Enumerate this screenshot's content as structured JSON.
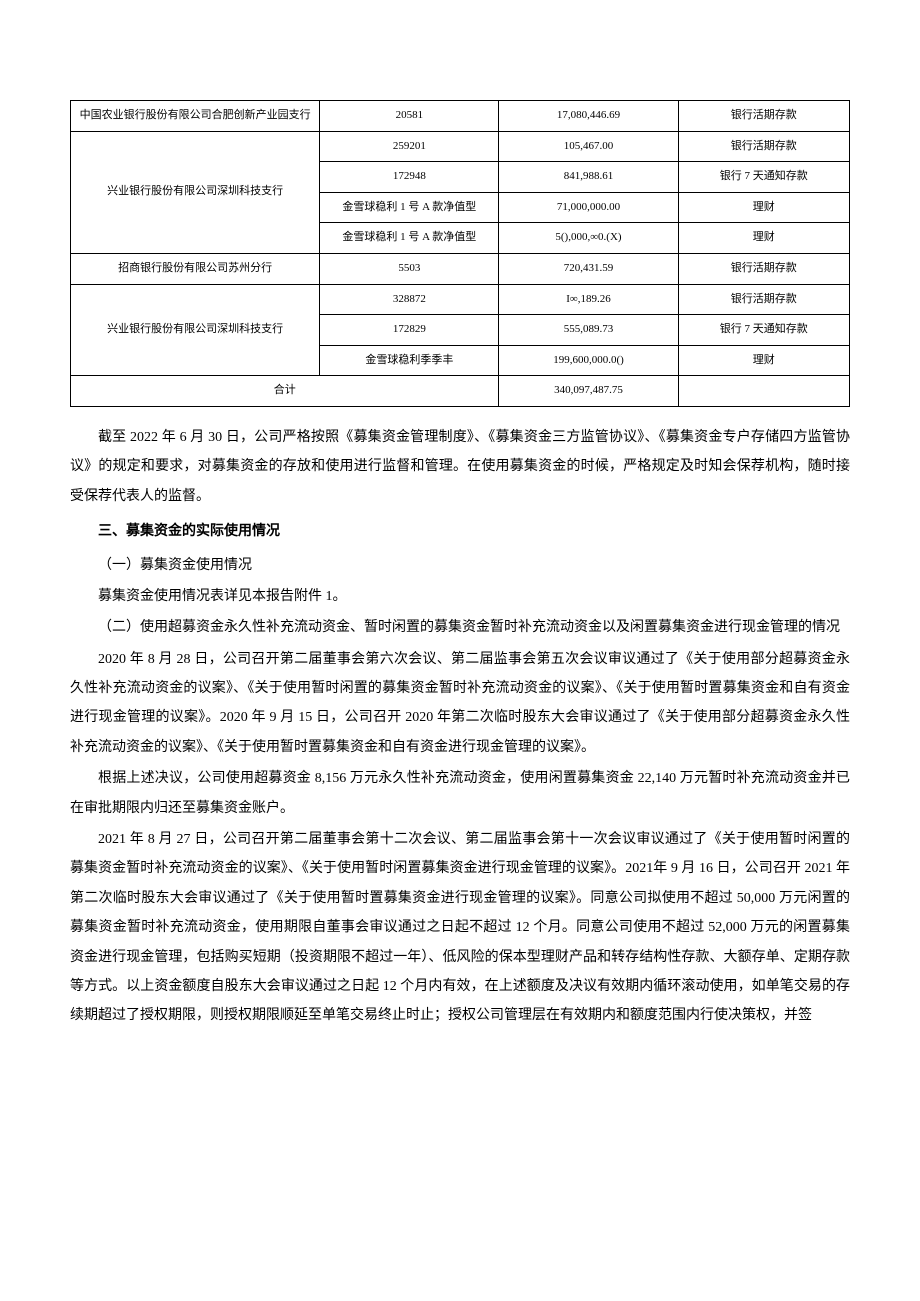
{
  "table": {
    "columns": {
      "bank_width": "32%",
      "account_width": "23%",
      "amount_width": "23%",
      "type_width": "22%"
    },
    "border_color": "#000000",
    "font_size": 11,
    "rows": [
      {
        "bank": "中国农业银行股份有限公司合肥创新产业园支行",
        "bank_rowspan": 1,
        "account": "20581",
        "amount": "17,080,446.69",
        "type": "银行活期存款"
      },
      {
        "bank": "兴业银行股份有限公司深圳科技支行",
        "bank_rowspan": 4,
        "account": "259201",
        "amount": "105,467.00",
        "type": "银行活期存款"
      },
      {
        "account": "172948",
        "amount": "841,988.61",
        "type": "银行 7 天通知存款"
      },
      {
        "account": "金雪球稳利 1 号 A 款净值型",
        "amount": "71,000,000.00",
        "type": "理财"
      },
      {
        "account": "金雪球稳利 1 号 A 款净值型",
        "amount": "5(),000,∞0.(X)",
        "type": "理财"
      },
      {
        "bank": "招商银行股份有限公司苏州分行",
        "bank_rowspan": 1,
        "account": "5503",
        "amount": "720,431.59",
        "type": "银行活期存款"
      },
      {
        "bank": "兴业银行股份有限公司深圳科技支行",
        "bank_rowspan": 3,
        "account": "328872",
        "amount": "I∞,189.26",
        "type": "银行活期存款"
      },
      {
        "account": "172829",
        "amount": "555,089.73",
        "type": "银行 7 天通知存款"
      },
      {
        "account": "金雪球稳利季季丰",
        "amount": "199,600,000.0()",
        "type": "理财"
      }
    ],
    "sum_row": {
      "label": "合计",
      "amount": "340,097,487.75",
      "type": ""
    }
  },
  "paragraphs": {
    "p1": "截至 2022 年 6 月 30 日，公司严格按照《募集资金管理制度》、《募集资金三方监管协议》、《募集资金专户存储四方监管协议》的规定和要求，对募集资金的存放和使用进行监督和管理。在使用募集资金的时候，严格规定及时知会保荐机构，随时接受保荐代表人的监督。",
    "h3": "三、募集资金的实际使用情况",
    "sub1": "（一）募集资金使用情况",
    "p2": "募集资金使用情况表详见本报告附件 1。",
    "sub2": "（二）使用超募资金永久性补充流动资金、暂时闲置的募集资金暂时补充流动资金以及闲置募集资金进行现金管理的情况",
    "p3": "2020 年 8 月 28 日，公司召开第二届董事会第六次会议、第二届监事会第五次会议审议通过了《关于使用部分超募资金永久性补充流动资金的议案》、《关于使用暂时闲置的募集资金暂时补充流动资金的议案》、《关于使用暂时置募集资金和自有资金进行现金管理的议案》。2020 年 9 月 15 日，公司召开 2020 年第二次临时股东大会审议通过了《关于使用部分超募资金永久性补充流动资金的议案》、《关于使用暂时置募集资金和自有资金进行现金管理的议案》。",
    "p4": "根据上述决议，公司使用超募资金 8,156 万元永久性补充流动资金，使用闲置募集资金 22,140 万元暂时补充流动资金并已在审批期限内归还至募集资金账户。",
    "p5": "2021 年 8 月 27 日，公司召开第二届董事会第十二次会议、第二届监事会第十一次会议审议通过了《关于使用暂时闲置的募集资金暂时补充流动资金的议案》、《关于使用暂时闲置募集资金进行现金管理的议案》。2021年 9 月 16 日，公司召开 2021 年第二次临时股东大会审议通过了《关于使用暂时置募集资金进行现金管理的议案》。同意公司拟使用不超过 50,000 万元闲置的募集资金暂时补充流动资金，使用期限自董事会审议通过之日起不超过 12 个月。同意公司使用不超过 52,000 万元的闲置募集资金进行现金管理，包括购买短期（投资期限不超过一年）、低风险的保本型理财产品和转存结构性存款、大额存单、定期存款等方式。以上资金额度自股东大会审议通过之日起 12 个月内有效，在上述额度及决议有效期内循环滚动使用，如单笔交易的存续期超过了授权期限，则授权期限顺延至单笔交易终止时止；授权公司管理层在有效期内和额度范围内行使决策权，并签"
  },
  "style": {
    "body_font_size": 14,
    "body_line_height": 2.1,
    "text_color": "#000000",
    "background_color": "#ffffff"
  }
}
